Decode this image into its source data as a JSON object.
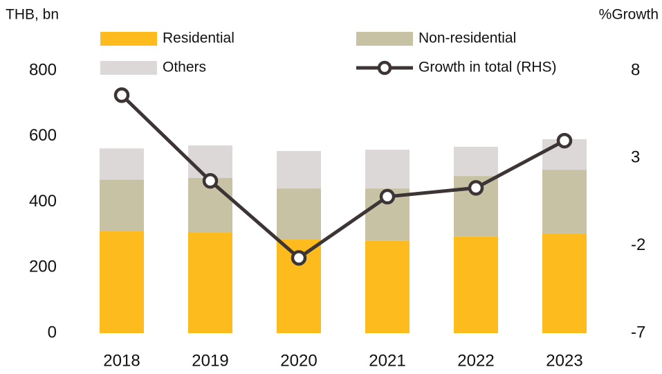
{
  "chart_data": {
    "type": "bar",
    "y_label": "THB, bn",
    "y2_label": "%Growth",
    "categories": [
      "2018",
      "2019",
      "2020",
      "2021",
      "2022",
      "2023"
    ],
    "stacked": true,
    "series": [
      {
        "name": "Residential",
        "color": "#FDBB1E",
        "values": [
          312,
          308,
          285,
          281,
          295,
          304
        ]
      },
      {
        "name": "Non-residential",
        "color": "#C8C2A4",
        "values": [
          156,
          165,
          156,
          160,
          184,
          194
        ]
      },
      {
        "name": "Others",
        "color": "#DCD8D8",
        "values": [
          95,
          99,
          114,
          118,
          89,
          93
        ]
      },
      {
        "name": "Growth in total (RHS)",
        "type": "line",
        "axis": "y2",
        "color": "#3D3535",
        "values": [
          6.6,
          1.7,
          -2.7,
          0.8,
          1.3,
          4.0
        ]
      }
    ],
    "ylim": [
      0,
      800
    ],
    "yticks": [
      0,
      200,
      400,
      600,
      800
    ],
    "y2lim": [
      -7,
      8
    ],
    "y2ticks": [
      -7,
      -2,
      3,
      8
    ],
    "grid": false,
    "legend": "top"
  }
}
